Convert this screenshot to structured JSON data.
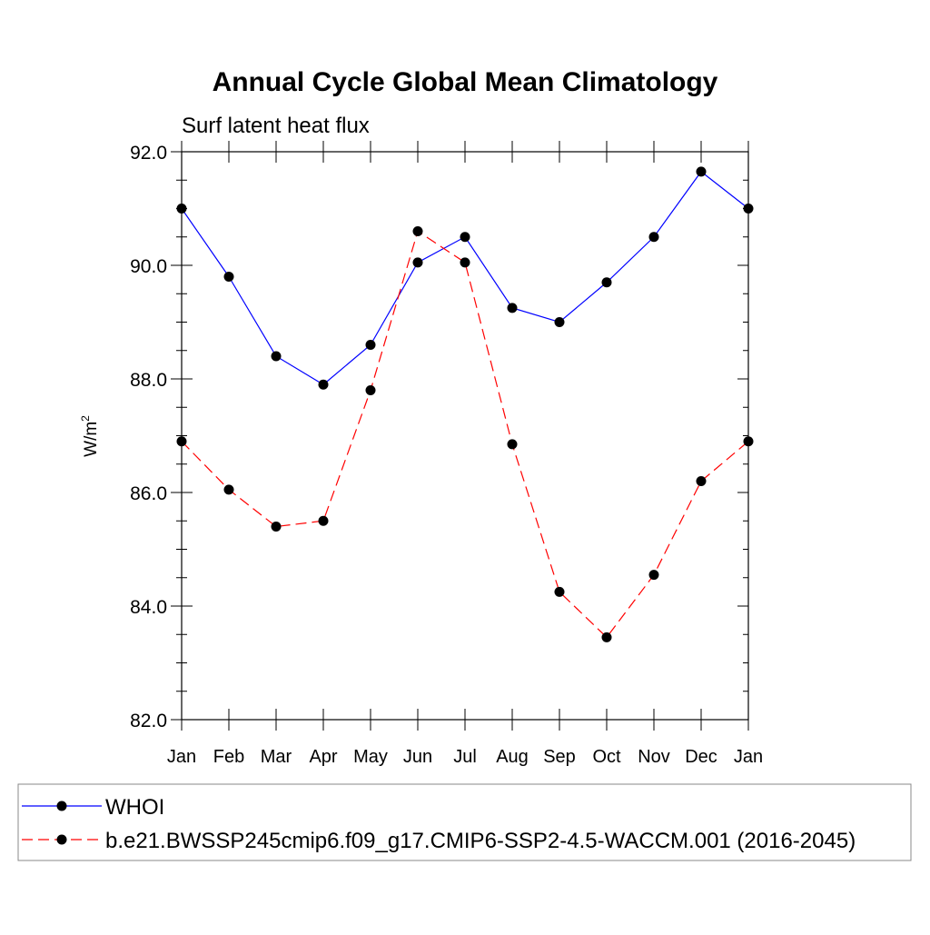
{
  "chart_data": {
    "type": "line",
    "title": "Annual Cycle Global Mean Climatology",
    "subtitle": "Surf latent heat flux",
    "ylabel": "W/m",
    "ylabel_sup": "2",
    "xlabel": "",
    "categories": [
      "Jan",
      "Feb",
      "Mar",
      "Apr",
      "May",
      "Jun",
      "Jul",
      "Aug",
      "Sep",
      "Oct",
      "Nov",
      "Dec",
      "Jan"
    ],
    "ylim": [
      82.0,
      92.0
    ],
    "yticks": [
      82.0,
      84.0,
      86.0,
      88.0,
      90.0,
      92.0
    ],
    "ytick_labels": [
      "82.0",
      "84.0",
      "86.0",
      "88.0",
      "90.0",
      "92.0"
    ],
    "grid": false,
    "legend_position": "bottom",
    "series": [
      {
        "name": "WHOI",
        "color": "#0000ff",
        "line_style": "solid",
        "marker": "filled-circle",
        "values": [
          91.0,
          89.8,
          88.4,
          87.9,
          88.6,
          90.05,
          90.5,
          89.25,
          89.0,
          89.7,
          90.5,
          91.65,
          91.0
        ]
      },
      {
        "name": "b.e21.BWSSP245cmip6.f09_g17.CMIP6-SSP2-4.5-WACCM.001 (2016-2045)",
        "color": "#ff0000",
        "line_style": "dashed",
        "marker": "filled-circle",
        "values": [
          86.9,
          86.05,
          85.4,
          85.5,
          87.8,
          90.6,
          90.05,
          86.85,
          84.25,
          83.45,
          84.55,
          86.2,
          86.9
        ]
      }
    ]
  }
}
